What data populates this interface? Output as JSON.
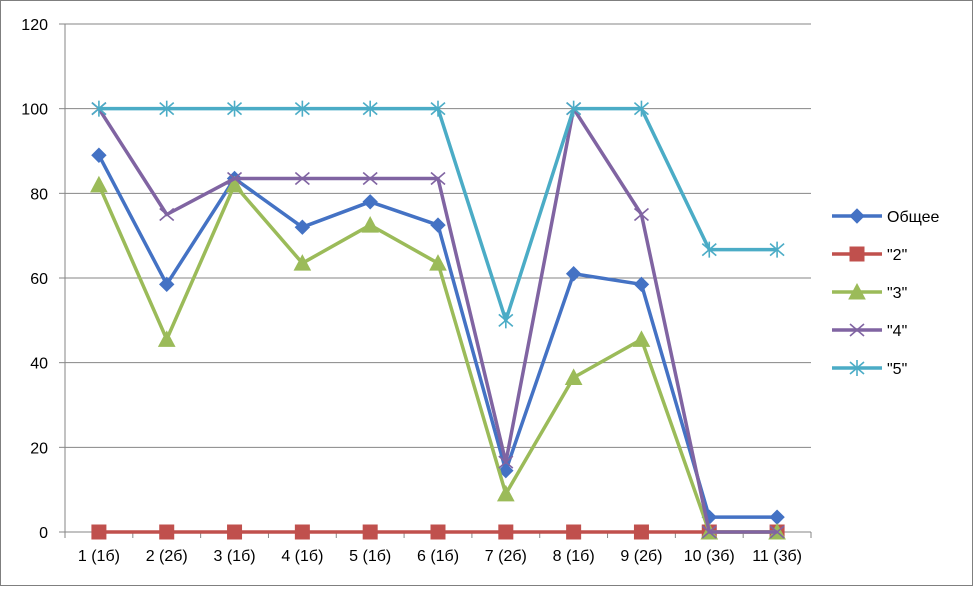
{
  "chart_data": {
    "type": "line",
    "title": "",
    "xlabel": "",
    "ylabel": "",
    "categories": [
      "1 (1б)",
      "2 (2б)",
      "3 (1б)",
      "4 (1б)",
      "5 (1б)",
      "6 (1б)",
      "7 (2б)",
      "8 (1б)",
      "9 (2б)",
      "10 (3б)",
      "11 (3б)"
    ],
    "ylim": [
      0,
      120
    ],
    "yticks": [
      0,
      20,
      40,
      60,
      80,
      100,
      120
    ],
    "grid": true,
    "legend_position": "right",
    "series": [
      {
        "name": "Общее",
        "color": "#4472C4",
        "marker": "diamond",
        "values": [
          89,
          58.5,
          83.5,
          72,
          78,
          72.5,
          14.5,
          61,
          58.5,
          3.5,
          3.5
        ]
      },
      {
        "name": "\"2\"",
        "color": "#C0504D",
        "marker": "square",
        "values": [
          0,
          0,
          0,
          0,
          0,
          0,
          0,
          0,
          0,
          0,
          0
        ]
      },
      {
        "name": "\"3\"",
        "color": "#9BBB59",
        "marker": "triangle",
        "values": [
          82,
          45.5,
          82,
          63.5,
          72.5,
          63.5,
          9,
          36.5,
          45.5,
          0,
          0
        ]
      },
      {
        "name": "\"4\"",
        "color": "#8064A2",
        "marker": "x",
        "values": [
          100,
          75,
          83.5,
          83.5,
          83.5,
          83.5,
          16.5,
          100,
          75,
          0,
          0
        ]
      },
      {
        "name": "\"5\"",
        "color": "#4BACC6",
        "marker": "star",
        "values": [
          100,
          100,
          100,
          100,
          100,
          100,
          50,
          100,
          100,
          66.7,
          66.7
        ]
      }
    ]
  }
}
